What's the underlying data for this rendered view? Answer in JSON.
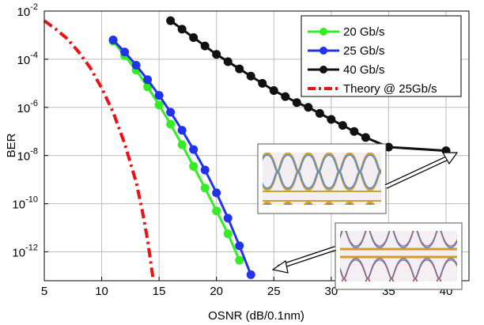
{
  "chart_data": {
    "type": "line",
    "title": "",
    "xlabel": "OSNR (dB/0.1nm)",
    "ylabel": "BER",
    "xlim": [
      5,
      42
    ],
    "ylim_log10": [
      -13.2,
      -2
    ],
    "yscale": "log",
    "grid": true,
    "legend_placement": "top-right",
    "x_ticks": [
      "5",
      "10",
      "15",
      "20",
      "25",
      "30",
      "35",
      "40"
    ],
    "x_tick_values": [
      5,
      10,
      15,
      20,
      25,
      30,
      35,
      40
    ],
    "y_ticks": [
      {
        "base": "10",
        "exp": "-2",
        "log": -2
      },
      {
        "base": "10",
        "exp": "-4",
        "log": -4
      },
      {
        "base": "10",
        "exp": "-6",
        "log": -6
      },
      {
        "base": "10",
        "exp": "-8",
        "log": -8
      },
      {
        "base": "10",
        "exp": "-10",
        "log": -10
      },
      {
        "base": "10",
        "exp": "-12",
        "log": -12
      }
    ],
    "series": [
      {
        "name": "20 Gb/s",
        "color": "#33ee22",
        "style": "solid-marker",
        "x": [
          11,
          12,
          13,
          14,
          15,
          16,
          17,
          18,
          19,
          20,
          21,
          22
        ],
        "log10_y": [
          -3.25,
          -3.85,
          -4.45,
          -5.15,
          -5.9,
          -6.7,
          -7.55,
          -8.45,
          -9.35,
          -10.3,
          -11.25,
          -12.35
        ]
      },
      {
        "name": "25 Gb/s",
        "color": "#2233ee",
        "style": "solid-marker",
        "x": [
          11,
          12,
          13,
          14,
          15,
          16,
          17,
          18,
          19,
          20,
          21,
          22,
          23
        ],
        "log10_y": [
          -3.2,
          -3.7,
          -4.25,
          -4.85,
          -5.5,
          -6.2,
          -6.95,
          -7.75,
          -8.6,
          -9.55,
          -10.6,
          -11.75,
          -12.95
        ]
      },
      {
        "name": "40 Gb/s",
        "color": "#111111",
        "style": "solid-marker",
        "x": [
          16,
          17,
          18,
          19,
          20,
          21,
          22,
          23,
          24,
          25,
          26,
          27,
          28,
          29,
          30,
          31,
          32,
          33,
          35,
          40
        ],
        "log10_y": [
          -2.4,
          -2.75,
          -3.1,
          -3.45,
          -3.8,
          -4.1,
          -4.4,
          -4.7,
          -5.0,
          -5.3,
          -5.55,
          -5.8,
          -6.0,
          -6.25,
          -6.5,
          -6.75,
          -7.0,
          -7.25,
          -7.65,
          -7.8
        ]
      },
      {
        "name": "Theory @ 25Gb/s",
        "color": "#ee1111",
        "style": "dash-dot",
        "x": [
          5,
          6,
          7,
          8,
          9,
          10,
          11,
          12,
          13,
          13.5,
          14,
          14.5
        ],
        "log10_y": [
          -2.4,
          -2.75,
          -3.15,
          -3.7,
          -4.35,
          -5.2,
          -6.2,
          -7.5,
          -9.1,
          -10.2,
          -11.5,
          -13.2
        ]
      }
    ]
  }
}
